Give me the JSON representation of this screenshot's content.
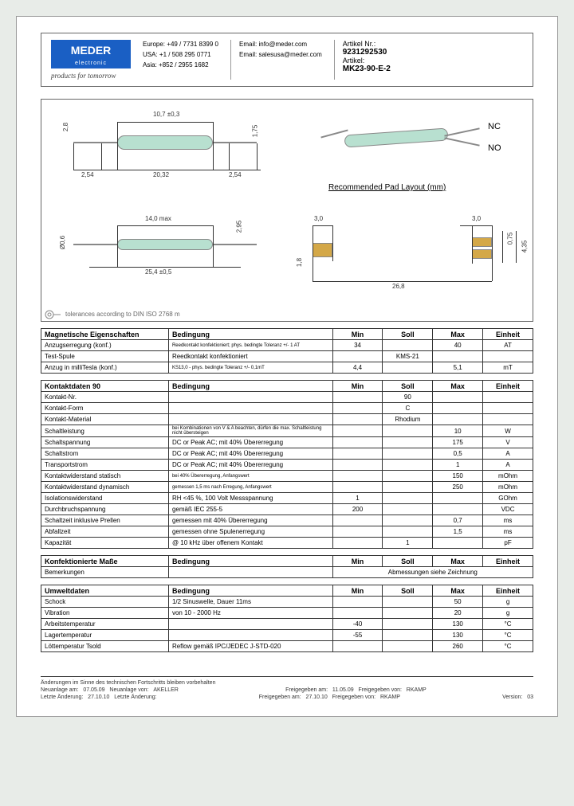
{
  "header": {
    "logo_main": "MEDER",
    "logo_sub": "electronic",
    "tagline": "products for tomorrow",
    "contacts": {
      "europe_label": "Europe:",
      "europe_phone": "+49 / 7731 8399 0",
      "usa_label": "USA:",
      "usa_phone": "+1 / 508 295 0771",
      "asia_label": "Asia:",
      "asia_phone": "+852 / 2955 1682",
      "email1_label": "Email:",
      "email1": "info@meder.com",
      "email2_label": "Email:",
      "email2": "salesusa@meder.com"
    },
    "article_nr_label": "Artikel Nr.:",
    "article_nr": "9231292530",
    "article_label": "Artikel:",
    "article": "MK23-90-E-2"
  },
  "drawing": {
    "dim1": "10,7 ±0,3",
    "dim2": "2,8",
    "dim3": "1,75",
    "dim4": "2,54",
    "dim5": "20,32",
    "dim6": "2,54",
    "dim7": "14,0 max",
    "dim8": "2,95",
    "dim9": "Ø0,6",
    "dim10": "25,4 ±0,5",
    "pad_title": "Recommended Pad Layout (mm)",
    "pad_d1": "3,0",
    "pad_d2": "1,8",
    "pad_d3": "3,0",
    "pad_d4": "0,75",
    "pad_d5": "4,35",
    "pad_d6": "26,8",
    "nc": "NC",
    "no": "NO",
    "tolerance": "tolerances according to DIN ISO 2768 m"
  },
  "tables": {
    "t1": {
      "title": "Magnetische Eigenschaften",
      "cond": "Bedingung",
      "min": "Min",
      "soll": "Soll",
      "max": "Max",
      "unit": "Einheit",
      "rows": [
        {
          "name": "Anzugserregung (konf.)",
          "cond": "Reedkontakt konfektioniert; phys. bedingte Toleranz +/- 1 AT",
          "min": "34",
          "soll": "",
          "max": "40",
          "unit": "AT"
        },
        {
          "name": "Test-Spule",
          "cond": "Reedkontakt konfektioniert",
          "min": "",
          "soll": "KMS-21",
          "max": "",
          "unit": ""
        },
        {
          "name": "Anzug in milliTesla (konf.)",
          "cond": "KS13,0 - phys. bedingte Toleranz +/- 0,1mT",
          "min": "4,4",
          "soll": "",
          "max": "5,1",
          "unit": "mT"
        }
      ]
    },
    "t2": {
      "title": "Kontaktdaten  90",
      "rows": [
        {
          "name": "Kontakt-Nr.",
          "cond": "",
          "min": "",
          "soll": "90",
          "max": "",
          "unit": ""
        },
        {
          "name": "Kontakt-Form",
          "cond": "",
          "min": "",
          "soll": "C",
          "max": "",
          "unit": ""
        },
        {
          "name": "Kontakt-Material",
          "cond": "",
          "min": "",
          "soll": "Rhodium",
          "max": "",
          "unit": ""
        },
        {
          "name": "Schaltleistung",
          "cond": "bei Kombinationen von V & A beachten, dürfen die max. Schaltleistung nicht übersteigen",
          "min": "",
          "soll": "",
          "max": "10",
          "unit": "W"
        },
        {
          "name": "Schaltspannung",
          "cond": "DC or Peak AC; mit 40% Übererregung",
          "min": "",
          "soll": "",
          "max": "175",
          "unit": "V"
        },
        {
          "name": "Schaltstrom",
          "cond": "DC or Peak AC; mit 40% Übererregung",
          "min": "",
          "soll": "",
          "max": "0,5",
          "unit": "A"
        },
        {
          "name": "Transportstrom",
          "cond": "DC or Peak AC; mit 40% Übererregung",
          "min": "",
          "soll": "",
          "max": "1",
          "unit": "A"
        },
        {
          "name": "Kontaktwiderstand statisch",
          "cond": "bei 40% Übererregung, Anfangswert",
          "min": "",
          "soll": "",
          "max": "150",
          "unit": "mOhm"
        },
        {
          "name": "Kontaktwiderstand dynamisch",
          "cond": "gemessen 1,5 ms nach Erregung, Anfangswert",
          "min": "",
          "soll": "",
          "max": "250",
          "unit": "mOhm"
        },
        {
          "name": "Isolationswiderstand",
          "cond": "RH <45 %, 100 Volt Messspannung",
          "min": "1",
          "soll": "",
          "max": "",
          "unit": "GOhm"
        },
        {
          "name": "Durchbruchspannung",
          "cond": "gemäß IEC 255-5",
          "min": "200",
          "soll": "",
          "max": "",
          "unit": "VDC"
        },
        {
          "name": "Schaltzeit inklusive Prellen",
          "cond": "gemessen mit 40% Übererregung",
          "min": "",
          "soll": "",
          "max": "0,7",
          "unit": "ms"
        },
        {
          "name": "Abfallzeit",
          "cond": "gemessen ohne Spulenerregung",
          "min": "",
          "soll": "",
          "max": "1,5",
          "unit": "ms"
        },
        {
          "name": "Kapazität",
          "cond": "@ 10 kHz über offenem Kontakt",
          "min": "",
          "soll": "1",
          "max": "",
          "unit": "pF"
        }
      ]
    },
    "t3": {
      "title": "Konfektionierte Maße",
      "rows": [
        {
          "name": "Bemerkungen",
          "cond": "",
          "span": "Abmessungen siehe Zeichnung"
        }
      ]
    },
    "t4": {
      "title": "Umweltdaten",
      "rows": [
        {
          "name": "Schock",
          "cond": "1/2 Sinuswelle, Dauer 11ms",
          "min": "",
          "soll": "",
          "max": "50",
          "unit": "g"
        },
        {
          "name": "Vibration",
          "cond": "von 10 - 2000 Hz",
          "min": "",
          "soll": "",
          "max": "20",
          "unit": "g"
        },
        {
          "name": "Arbeitstemperatur",
          "cond": "",
          "min": "-40",
          "soll": "",
          "max": "130",
          "unit": "°C"
        },
        {
          "name": "Lagertemperatur",
          "cond": "",
          "min": "-55",
          "soll": "",
          "max": "130",
          "unit": "°C"
        },
        {
          "name": "Löttemperatur Tsold",
          "cond": "Reflow gemäß IPC/JEDEC J-STD-020",
          "min": "",
          "soll": "",
          "max": "260",
          "unit": "°C"
        }
      ]
    }
  },
  "footer": {
    "disclaimer": "Änderungen im Sinne des technischen Fortschritts bleiben vorbehalten",
    "neu_label": "Neuanlage am:",
    "neu_date": "07.05.09",
    "neu_by_label": "Neuanlage von:",
    "neu_by": "AKELLER",
    "frei_label": "Freigegeben am:",
    "frei_date": "11.05.09",
    "frei_by_label": "Freigegeben von:",
    "frei_by": "RKAMP",
    "aend_label": "Letzte Änderung:",
    "aend_date": "27.10.10",
    "aend2_label": "Letzte Änderung:",
    "frei2_label": "Freigegeben am:",
    "frei2_date": "27.10.10",
    "frei2_by_label": "Freigegeben von:",
    "frei2_by": "RKAMP",
    "ver_label": "Version:",
    "ver": "03"
  }
}
